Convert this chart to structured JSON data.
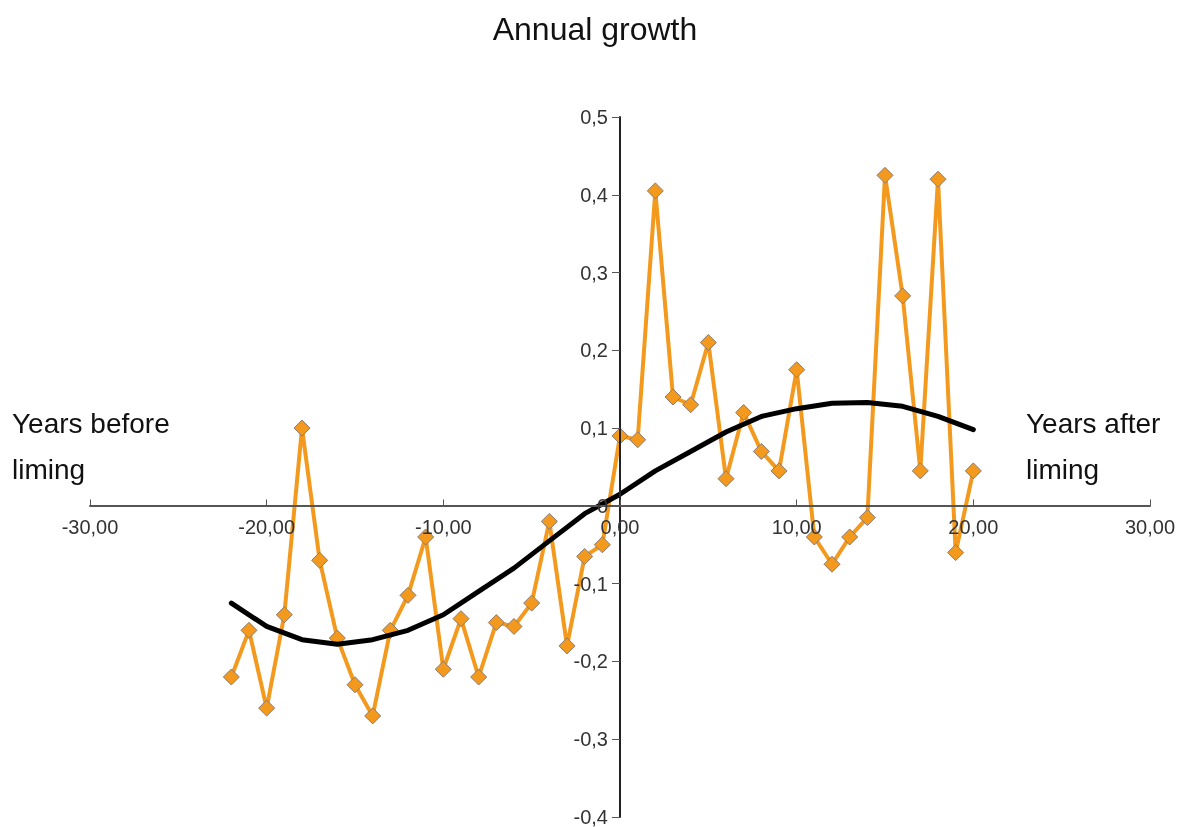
{
  "chart_data": {
    "type": "line",
    "title": "Annual growth",
    "annotations": [
      "Years before liming",
      "Years after liming"
    ],
    "xlim": [
      -30,
      30
    ],
    "xticks": [
      {
        "value": -30,
        "label": "-30,00"
      },
      {
        "value": -20,
        "label": "-20,00"
      },
      {
        "value": -10,
        "label": "-10,00"
      },
      {
        "value": 0,
        "label": "0,00"
      },
      {
        "value": 10,
        "label": "10,00"
      },
      {
        "value": 20,
        "label": "20,00"
      },
      {
        "value": 30,
        "label": "30,00"
      }
    ],
    "ylim": [
      -0.4,
      0.5
    ],
    "yticks": [
      {
        "value": -0.4,
        "label": "-0,4"
      },
      {
        "value": -0.3,
        "label": "-0,3"
      },
      {
        "value": -0.2,
        "label": "-0,2"
      },
      {
        "value": -0.1,
        "label": "-0,1"
      },
      0,
      {
        "value": 0.1,
        "label": "0,1"
      },
      {
        "value": 0.2,
        "label": "0,2"
      },
      {
        "value": 0.3,
        "label": "0,3"
      },
      {
        "value": 0.4,
        "label": "0,4"
      },
      {
        "value": 0.5,
        "label": "0,5"
      }
    ],
    "grid": false,
    "marker": "diamond",
    "line_style": "solid",
    "series": [
      {
        "color": "#f39a1e",
        "x": [
          -22,
          -21,
          -20,
          -19,
          -18,
          -17,
          -16,
          -15,
          -14,
          -13,
          -12,
          -11,
          -10,
          -9,
          -8,
          -7,
          -6,
          -5,
          -4,
          -3,
          -2,
          -1,
          0,
          1,
          2,
          3,
          4,
          5,
          6,
          7,
          8,
          9,
          10,
          11,
          12,
          13,
          14,
          15,
          16,
          17,
          18,
          19,
          20
        ],
        "values": [
          -0.22,
          -0.16,
          -0.26,
          -0.14,
          0.1,
          -0.07,
          -0.17,
          -0.23,
          -0.27,
          -0.16,
          -0.115,
          -0.04,
          -0.21,
          -0.145,
          -0.22,
          -0.15,
          -0.155,
          -0.125,
          -0.02,
          -0.18,
          -0.065,
          -0.05,
          0.09,
          0.085,
          0.405,
          0.14,
          0.13,
          0.21,
          0.035,
          0.12,
          0.07,
          0.045,
          0.175,
          -0.04,
          -0.075,
          -0.04,
          -0.015,
          0.425,
          0.27,
          0.045,
          0.42,
          -0.06,
          0.045
        ]
      },
      {
        "color": "#000000",
        "marker": "none",
        "x": [
          -22,
          -20,
          -18,
          -16,
          -14,
          -12,
          -10,
          -8,
          -6,
          -4,
          -2,
          0,
          2,
          4,
          6,
          8,
          10,
          12,
          14,
          16,
          18,
          20
        ],
        "values": [
          -0.125,
          -0.155,
          -0.172,
          -0.178,
          -0.172,
          -0.16,
          -0.14,
          -0.11,
          -0.08,
          -0.045,
          -0.01,
          0.015,
          0.045,
          0.07,
          0.095,
          0.115,
          0.125,
          0.132,
          0.133,
          0.128,
          0.115,
          0.098
        ]
      }
    ]
  }
}
